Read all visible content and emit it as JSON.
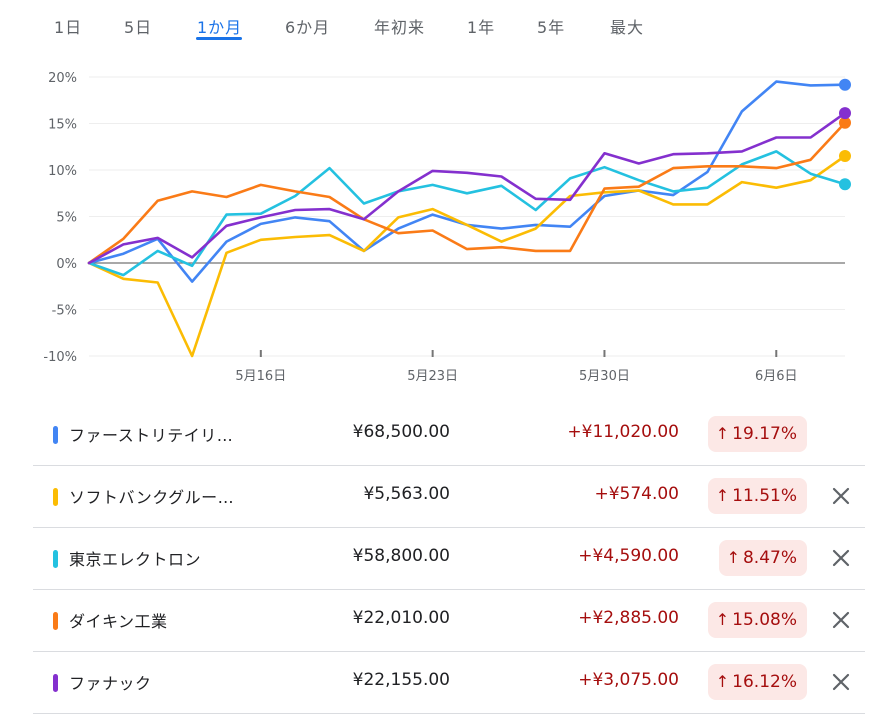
{
  "tabs": [
    {
      "label": "1日",
      "active": false
    },
    {
      "label": "5日",
      "active": false
    },
    {
      "label": "1か月",
      "active": true
    },
    {
      "label": "6か月",
      "active": false
    },
    {
      "label": "年初来",
      "active": false
    },
    {
      "label": "1年",
      "active": false
    },
    {
      "label": "5年",
      "active": false
    },
    {
      "label": "最大",
      "active": false
    }
  ],
  "colors": {
    "accent": "#1a73e8",
    "negative_text": "#a50e0e",
    "badge_bg": "#fce8e6",
    "grid": "#eeeeee",
    "zero_line": "#757575"
  },
  "chart_data": {
    "type": "line",
    "y_ticks": [
      "20%",
      "15%",
      "10%",
      "5%",
      "0%",
      "-5%",
      "-10%"
    ],
    "ylim": [
      -10,
      20
    ],
    "x_labels": [
      "5月16日",
      "5月23日",
      "5月30日",
      "6月6日"
    ],
    "x_label_index": [
      5,
      10,
      15,
      20
    ],
    "num_points": 23,
    "grid": true,
    "series": [
      {
        "name": "ファーストリテイリ…",
        "color": "#4285f4",
        "values": [
          0,
          1.0,
          2.6,
          -2.0,
          2.3,
          4.2,
          4.9,
          4.5,
          1.3,
          3.7,
          5.2,
          4.1,
          3.7,
          4.1,
          3.9,
          7.2,
          7.8,
          7.3,
          9.8,
          16.3,
          19.5,
          19.1,
          19.17
        ]
      },
      {
        "name": "ソフトバンクグルー…",
        "color": "#fbbc04",
        "values": [
          0,
          -1.7,
          -2.1,
          -10.0,
          1.1,
          2.5,
          2.8,
          3.0,
          1.3,
          4.9,
          5.8,
          4.1,
          2.3,
          3.7,
          7.2,
          7.6,
          7.8,
          6.3,
          6.3,
          8.7,
          8.1,
          8.9,
          11.51
        ]
      },
      {
        "name": "東京エレクトロン",
        "color": "#24c1e0",
        "values": [
          0,
          -1.3,
          1.3,
          -0.3,
          5.2,
          5.3,
          7.2,
          10.2,
          6.4,
          7.7,
          8.4,
          7.5,
          8.3,
          5.7,
          9.1,
          10.3,
          8.9,
          7.7,
          8.1,
          10.6,
          12.0,
          9.6,
          8.47
        ]
      },
      {
        "name": "ダイキン工業",
        "color": "#fa7b17",
        "values": [
          0,
          2.6,
          6.7,
          7.7,
          7.1,
          8.4,
          7.7,
          7.1,
          4.7,
          3.2,
          3.5,
          1.5,
          1.7,
          1.3,
          1.3,
          8.0,
          8.2,
          10.2,
          10.4,
          10.4,
          10.2,
          11.1,
          15.08
        ]
      },
      {
        "name": "ファナック",
        "color": "#8430ce",
        "values": [
          0,
          2.0,
          2.7,
          0.6,
          4.0,
          4.9,
          5.7,
          5.8,
          4.7,
          7.7,
          9.9,
          9.7,
          9.3,
          6.9,
          6.8,
          11.8,
          10.7,
          11.7,
          11.8,
          12.0,
          13.5,
          13.5,
          16.12
        ]
      }
    ]
  },
  "stocks": [
    {
      "name": "ファーストリテイリ…",
      "color": "#4285f4",
      "price": "¥68,500.00",
      "change": "+¥11,020.00",
      "pct": "19.17%",
      "arrow": "↑",
      "removable": false
    },
    {
      "name": "ソフトバンクグルー…",
      "color": "#fbbc04",
      "price": "¥5,563.00",
      "change": "+¥574.00",
      "pct": "11.51%",
      "arrow": "↑",
      "removable": true
    },
    {
      "name": "東京エレクトロン",
      "color": "#24c1e0",
      "price": "¥58,800.00",
      "change": "+¥4,590.00",
      "pct": "8.47%",
      "arrow": "↑",
      "removable": true
    },
    {
      "name": "ダイキン工業",
      "color": "#fa7b17",
      "price": "¥22,010.00",
      "change": "+¥2,885.00",
      "pct": "15.08%",
      "arrow": "↑",
      "removable": true
    },
    {
      "name": "ファナック",
      "color": "#8430ce",
      "price": "¥22,155.00",
      "change": "+¥3,075.00",
      "pct": "16.12%",
      "arrow": "↑",
      "removable": true
    }
  ]
}
